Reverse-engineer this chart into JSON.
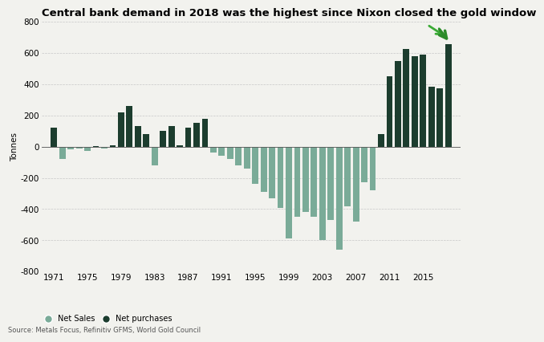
{
  "title": "Central bank demand in 2018 was the highest since Nixon closed the gold window",
  "ylabel": "Tonnes",
  "source": "Source: Metals Focus, Refinitiv GFMS, World Gold Council",
  "ylim": [
    -800,
    800
  ],
  "yticks": [
    -800,
    -600,
    -400,
    -200,
    0,
    200,
    400,
    600,
    800
  ],
  "xtick_labels": [
    "1971",
    "1975",
    "1979",
    "1983",
    "1987",
    "1991",
    "1995",
    "1999",
    "2003",
    "2007",
    "2011",
    "2015"
  ],
  "xtick_positions": [
    1971,
    1975,
    1979,
    1983,
    1987,
    1991,
    1995,
    1999,
    2003,
    2007,
    2011,
    2015
  ],
  "years": [
    1971,
    1972,
    1973,
    1974,
    1975,
    1976,
    1977,
    1978,
    1979,
    1980,
    1981,
    1982,
    1983,
    1984,
    1985,
    1986,
    1987,
    1988,
    1989,
    1990,
    1991,
    1992,
    1993,
    1994,
    1995,
    1996,
    1997,
    1998,
    1999,
    2000,
    2001,
    2002,
    2003,
    2004,
    2005,
    2006,
    2007,
    2008,
    2009,
    2010,
    2011,
    2012,
    2013,
    2014,
    2015,
    2016,
    2017,
    2018
  ],
  "values": [
    120,
    -80,
    -20,
    -10,
    -30,
    5,
    -10,
    10,
    220,
    260,
    130,
    80,
    -120,
    100,
    130,
    10,
    120,
    150,
    180,
    -40,
    -60,
    -80,
    -120,
    -140,
    -240,
    -290,
    -330,
    -390,
    -590,
    -450,
    -420,
    -450,
    -600,
    -470,
    -660,
    -380,
    -480,
    -230,
    -280,
    80,
    450,
    550,
    625,
    580,
    590,
    385,
    375,
    655
  ],
  "positive_color": "#1c3d2e",
  "negative_color": "#7aab98",
  "background_color": "#f2f2ee",
  "grid_color": "#c8c8c8",
  "title_fontsize": 9.5,
  "axis_fontsize": 7.5,
  "legend_items": [
    "Net Sales",
    "Net purchases"
  ],
  "legend_colors": [
    "#7aab98",
    "#1c3d2e"
  ]
}
